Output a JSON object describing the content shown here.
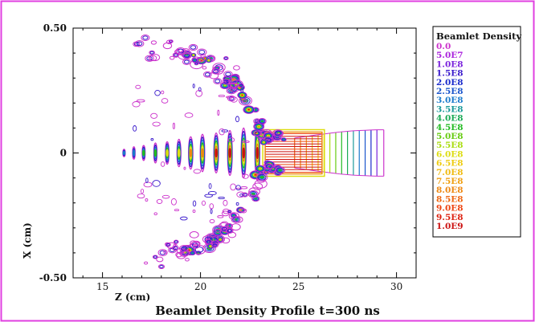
{
  "chart_data": {
    "type": "contour",
    "title": "Beamlet Density Profile  t=300 ns",
    "xlabel": "Z (cm)",
    "ylabel": "X (cm)",
    "xlim": [
      13.5,
      31
    ],
    "ylim": [
      -0.5,
      0.5
    ],
    "x_ticks": [
      15,
      20,
      25,
      30
    ],
    "y_ticks": [
      "0.50",
      "0",
      "-0.50"
    ],
    "grid": false,
    "legend": {
      "title": "Beamlet Density",
      "placement": "right",
      "levels": [
        {
          "label": "0.0",
          "color": "#cc33cc"
        },
        {
          "label": "5.0E7",
          "color": "#aa22dd"
        },
        {
          "label": "1.0E8",
          "color": "#7a22dd"
        },
        {
          "label": "1.5E8",
          "color": "#3a1acc"
        },
        {
          "label": "2.0E8",
          "color": "#1a2acc"
        },
        {
          "label": "2.5E8",
          "color": "#1a55cc"
        },
        {
          "label": "3.0E8",
          "color": "#1a7acc"
        },
        {
          "label": "3.5E8",
          "color": "#1a9999"
        },
        {
          "label": "4.0E8",
          "color": "#1aaa55"
        },
        {
          "label": "4.5E8",
          "color": "#22bb22"
        },
        {
          "label": "5.0E8",
          "color": "#66cc11"
        },
        {
          "label": "5.5E8",
          "color": "#aadd11"
        },
        {
          "label": "6.0E8",
          "color": "#dddd11"
        },
        {
          "label": "6.5E8",
          "color": "#eecc11"
        },
        {
          "label": "7.0E8",
          "color": "#f0bb11"
        },
        {
          "label": "7.5E8",
          "color": "#f0a011"
        },
        {
          "label": "8.0E8",
          "color": "#ee8811"
        },
        {
          "label": "8.5E8",
          "color": "#ee6611"
        },
        {
          "label": "9.0E8",
          "color": "#ee4411"
        },
        {
          "label": "9.5E8",
          "color": "#dd2211"
        },
        {
          "label": "1.0E9",
          "color": "#cc1111"
        }
      ]
    },
    "features": {
      "side_contour_lines": [
        {
          "x": 24.8,
          "half_width": 0.06,
          "level_index": 17
        },
        {
          "x": 25.1,
          "half_width": 0.063,
          "level_index": 16
        },
        {
          "x": 25.4,
          "half_width": 0.066,
          "level_index": 15
        },
        {
          "x": 25.7,
          "half_width": 0.07,
          "level_index": 14
        },
        {
          "x": 26.0,
          "half_width": 0.073,
          "level_index": 13
        },
        {
          "x": 26.3,
          "half_width": 0.076,
          "level_index": 12
        },
        {
          "x": 26.6,
          "half_width": 0.079,
          "level_index": 11
        },
        {
          "x": 26.9,
          "half_width": 0.082,
          "level_index": 10
        },
        {
          "x": 27.2,
          "half_width": 0.085,
          "level_index": 9
        },
        {
          "x": 27.5,
          "half_width": 0.087,
          "level_index": 8
        },
        {
          "x": 27.8,
          "half_width": 0.089,
          "level_index": 7
        },
        {
          "x": 28.1,
          "half_width": 0.09,
          "level_index": 6
        },
        {
          "x": 28.4,
          "half_width": 0.091,
          "level_index": 5
        },
        {
          "x": 28.7,
          "half_width": 0.092,
          "level_index": 4
        },
        {
          "x": 29.0,
          "half_width": 0.093,
          "level_index": 2
        },
        {
          "x": 29.35,
          "half_width": 0.093,
          "level_index": 0
        }
      ],
      "central_islands": [
        {
          "x": 16.1,
          "rx": 0.12,
          "ry": 0.015
        },
        {
          "x": 16.6,
          "rx": 0.13,
          "ry": 0.025
        },
        {
          "x": 17.1,
          "rx": 0.15,
          "ry": 0.03
        },
        {
          "x": 17.7,
          "rx": 0.16,
          "ry": 0.04
        },
        {
          "x": 18.3,
          "rx": 0.18,
          "ry": 0.045
        },
        {
          "x": 18.9,
          "rx": 0.2,
          "ry": 0.055
        },
        {
          "x": 19.5,
          "rx": 0.22,
          "ry": 0.065
        },
        {
          "x": 20.1,
          "rx": 0.23,
          "ry": 0.075
        },
        {
          "x": 20.8,
          "rx": 0.24,
          "ry": 0.08
        },
        {
          "x": 21.5,
          "rx": 0.24,
          "ry": 0.09
        },
        {
          "x": 22.2,
          "rx": 0.25,
          "ry": 0.1
        },
        {
          "x": 22.9,
          "rx": 0.25,
          "ry": 0.11
        }
      ]
    }
  }
}
